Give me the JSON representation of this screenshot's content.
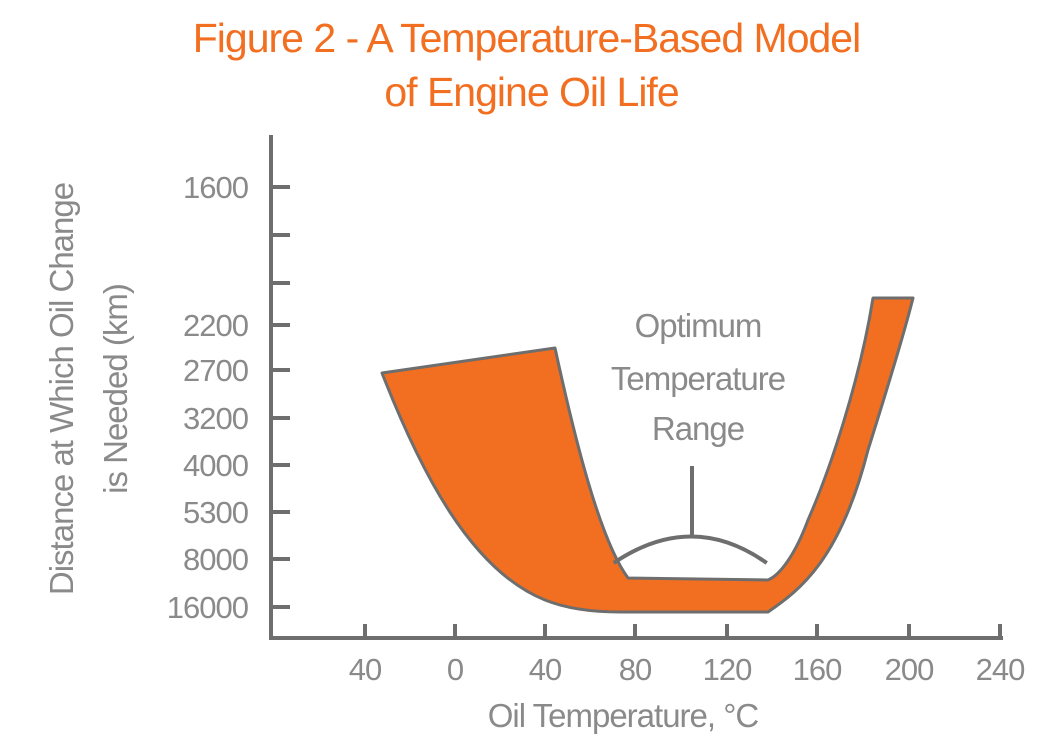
{
  "chart_data": {
    "type": "area",
    "title_line1": "Figure 2 - A Temperature-Based Model",
    "title_line2": "of Engine Oil Life",
    "xlabel": "Oil Temperature, °C",
    "ylabel_line1": "Distance at Which Oil Change",
    "ylabel_line2": "is Needed (km)",
    "x_ticks": [
      "40",
      "0",
      "40",
      "80",
      "120",
      "160",
      "200",
      "240"
    ],
    "y_ticks": [
      "1600",
      "",
      "",
      "2200",
      "2700",
      "3200",
      "4000",
      "5300",
      "8000",
      "16000"
    ],
    "band_outer": [
      {
        "x": -35,
        "y": 2700
      },
      {
        "x": 0,
        "y": 8000
      },
      {
        "x": 40,
        "y": 16000
      },
      {
        "x": 80,
        "y": 16000
      },
      {
        "x": 120,
        "y": 16000
      },
      {
        "x": 140,
        "y": 16000
      },
      {
        "x": 180,
        "y": 8000
      },
      {
        "x": 200,
        "y": 1800
      }
    ],
    "band_inner": [
      {
        "x": 185,
        "y": 1800
      },
      {
        "x": 160,
        "y": 5300
      },
      {
        "x": 140,
        "y": 8000
      },
      {
        "x": 120,
        "y": 8000
      },
      {
        "x": 80,
        "y": 8000
      },
      {
        "x": 60,
        "y": 4000
      },
      {
        "x": 45,
        "y": 2500
      }
    ],
    "annotation": {
      "lines": [
        "Optimum",
        "Temperature",
        "Range"
      ],
      "range_start": 75,
      "range_end": 135
    },
    "colors": {
      "band_fill": "#f26f21",
      "band_edge": "#6e6e6e",
      "axis": "#6e6e6e",
      "text": "#8a8a8a",
      "title": "#f26f21"
    }
  }
}
